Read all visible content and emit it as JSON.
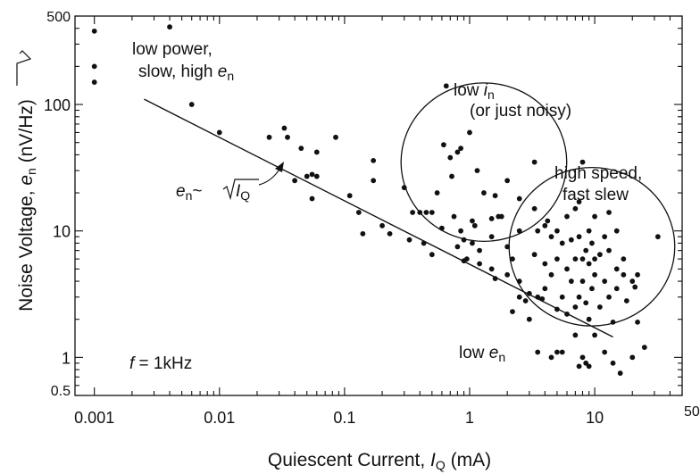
{
  "chart_data": {
    "type": "scatter",
    "x_scale": "log",
    "y_scale": "log",
    "xlim": [
      0.0007,
      50
    ],
    "ylim": [
      0.5,
      500
    ],
    "grid": false,
    "xlabel": {
      "main": "Quiescent Current, ",
      "var": "I",
      "sub": "Q",
      "unit": " (mA)"
    },
    "ylabel": {
      "main": "Noise Voltage, ",
      "var": "e",
      "sub": "n",
      "unit_open": " (nV/",
      "unit_rad": "Hz",
      "unit_close": ")"
    },
    "x_ticks": [
      {
        "value": 0.001,
        "label": "0.001"
      },
      {
        "value": 0.01,
        "label": "0.01"
      },
      {
        "value": 0.1,
        "label": "0.1"
      },
      {
        "value": 1,
        "label": "1"
      },
      {
        "value": 10,
        "label": "10"
      },
      {
        "value": 50,
        "label": "50"
      }
    ],
    "y_ticks": [
      {
        "value": 500,
        "label": "500"
      },
      {
        "value": 100,
        "label": "100"
      },
      {
        "value": 10,
        "label": "10"
      },
      {
        "value": 1,
        "label": "1"
      },
      {
        "value": 0.5,
        "label": "0.5"
      }
    ],
    "fit_line": {
      "label": "e_n ~ sqrt(I_Q)",
      "points": [
        [
          0.0025,
          110
        ],
        [
          14,
          1.45
        ]
      ]
    },
    "annotations": {
      "low_power_1": "low power,",
      "low_power_2": "slow, high ",
      "low_power_var": "e",
      "low_power_sub": "n",
      "low_in_1": "low ",
      "low_in_var": "i",
      "low_in_sub": "n",
      "low_in_2": "(or just noisy)",
      "high_speed_1": "high speed,",
      "high_speed_2": "fast slew",
      "low_en_1": "low ",
      "low_en_var": "e",
      "low_en_sub": "n",
      "freq_var": "f",
      "freq_text": " = 1kHz",
      "fit_var": "e",
      "fit_sub": "n",
      "fit_tilde": "~",
      "fit_rad_var": "I",
      "fit_rad_sub": "Q"
    },
    "circles": [
      {
        "name": "low-in-region",
        "cx": 1.3,
        "cy": 35,
        "r_decades": 0.72
      },
      {
        "name": "high-speed-region",
        "cx": 9.5,
        "cy": 7.5,
        "r_decades": 0.72
      }
    ],
    "points": [
      [
        0.001,
        380
      ],
      [
        0.001,
        200
      ],
      [
        0.001,
        150
      ],
      [
        0.004,
        410
      ],
      [
        0.006,
        100
      ],
      [
        0.01,
        60
      ],
      [
        0.025,
        55
      ],
      [
        0.033,
        65
      ],
      [
        0.035,
        55
      ],
      [
        0.04,
        25
      ],
      [
        0.05,
        27
      ],
      [
        0.055,
        28
      ],
      [
        0.06,
        27
      ],
      [
        0.045,
        45
      ],
      [
        0.06,
        42
      ],
      [
        0.055,
        18
      ],
      [
        0.085,
        55
      ],
      [
        0.11,
        19
      ],
      [
        0.13,
        14
      ],
      [
        0.14,
        9.5
      ],
      [
        0.17,
        36
      ],
      [
        0.17,
        25
      ],
      [
        0.2,
        11
      ],
      [
        0.23,
        9.5
      ],
      [
        0.3,
        22
      ],
      [
        0.33,
        8.5
      ],
      [
        0.35,
        14
      ],
      [
        0.4,
        14
      ],
      [
        0.43,
        8
      ],
      [
        0.45,
        14
      ],
      [
        0.5,
        14
      ],
      [
        0.5,
        6.5
      ],
      [
        0.55,
        20
      ],
      [
        0.6,
        10.5
      ],
      [
        0.62,
        48
      ],
      [
        0.65,
        140
      ],
      [
        0.7,
        38
      ],
      [
        0.72,
        27
      ],
      [
        0.75,
        13
      ],
      [
        0.8,
        42
      ],
      [
        0.85,
        45
      ],
      [
        0.8,
        7.5
      ],
      [
        0.85,
        10
      ],
      [
        0.9,
        8.5
      ],
      [
        0.9,
        5.8
      ],
      [
        0.95,
        6
      ],
      [
        1.0,
        60
      ],
      [
        1.05,
        12
      ],
      [
        1.05,
        8
      ],
      [
        1.1,
        11
      ],
      [
        1.15,
        30
      ],
      [
        1.2,
        5.5
      ],
      [
        1.2,
        7
      ],
      [
        1.3,
        20
      ],
      [
        1.5,
        9
      ],
      [
        1.5,
        12.5
      ],
      [
        1.5,
        5
      ],
      [
        1.6,
        4.2
      ],
      [
        1.6,
        19
      ],
      [
        1.7,
        13
      ],
      [
        1.8,
        13
      ],
      [
        2.0,
        25
      ],
      [
        2.0,
        7.5
      ],
      [
        2.0,
        4.5
      ],
      [
        2.2,
        6
      ],
      [
        2.2,
        2.3
      ],
      [
        2.5,
        18
      ],
      [
        2.5,
        10
      ],
      [
        2.5,
        4
      ],
      [
        2.5,
        3
      ],
      [
        2.8,
        2.8
      ],
      [
        3.0,
        3.2
      ],
      [
        3.0,
        2.0
      ],
      [
        3.3,
        35
      ],
      [
        3.3,
        15
      ],
      [
        3.3,
        6.5
      ],
      [
        3.5,
        10
      ],
      [
        3.5,
        3
      ],
      [
        3.5,
        1.1
      ],
      [
        3.8,
        2.9
      ],
      [
        4.0,
        11
      ],
      [
        4.0,
        5.5
      ],
      [
        4.0,
        3.5
      ],
      [
        4.2,
        12
      ],
      [
        4.5,
        9
      ],
      [
        4.5,
        4.5
      ],
      [
        4.5,
        1.0
      ],
      [
        5.0,
        10
      ],
      [
        5.0,
        6
      ],
      [
        5.0,
        2.4
      ],
      [
        5.0,
        1.1
      ],
      [
        5.5,
        8
      ],
      [
        5.5,
        3
      ],
      [
        5.5,
        1.1
      ],
      [
        6.0,
        13
      ],
      [
        6.0,
        5
      ],
      [
        6.0,
        2.2
      ],
      [
        6.5,
        8.5
      ],
      [
        6.5,
        4
      ],
      [
        7.0,
        15
      ],
      [
        7.0,
        6
      ],
      [
        7.0,
        2.5
      ],
      [
        7.0,
        1.5
      ],
      [
        7.5,
        17
      ],
      [
        7.5,
        9
      ],
      [
        7.5,
        3
      ],
      [
        7.5,
        0.85
      ],
      [
        8.0,
        35
      ],
      [
        8.0,
        6
      ],
      [
        8.0,
        4
      ],
      [
        8.0,
        1.0
      ],
      [
        8.5,
        7
      ],
      [
        8.5,
        2.7
      ],
      [
        8.5,
        0.9
      ],
      [
        9.0,
        10
      ],
      [
        9.0,
        5.5
      ],
      [
        9.0,
        2.0
      ],
      [
        9.0,
        0.85
      ],
      [
        9.5,
        8
      ],
      [
        9.5,
        3.5
      ],
      [
        10.0,
        13
      ],
      [
        10.0,
        6
      ],
      [
        10.0,
        4.5
      ],
      [
        10.0,
        1.5
      ],
      [
        11.0,
        6.5
      ],
      [
        11.0,
        2.5
      ],
      [
        12.0,
        9
      ],
      [
        12.0,
        4
      ],
      [
        12.0,
        1.1
      ],
      [
        13.0,
        14
      ],
      [
        13.0,
        7
      ],
      [
        13.0,
        3
      ],
      [
        14.0,
        1.9
      ],
      [
        14.0,
        0.9
      ],
      [
        15.0,
        10
      ],
      [
        15.0,
        5
      ],
      [
        15.0,
        3.5
      ],
      [
        16.0,
        0.75
      ],
      [
        17.0,
        6
      ],
      [
        17.0,
        4.5
      ],
      [
        18.0,
        2.8
      ],
      [
        20.0,
        4
      ],
      [
        20.0,
        1.0
      ],
      [
        21.0,
        3.6
      ],
      [
        22.0,
        4.5
      ],
      [
        22.0,
        1.9
      ],
      [
        25.0,
        1.2
      ],
      [
        32.0,
        9
      ]
    ]
  }
}
